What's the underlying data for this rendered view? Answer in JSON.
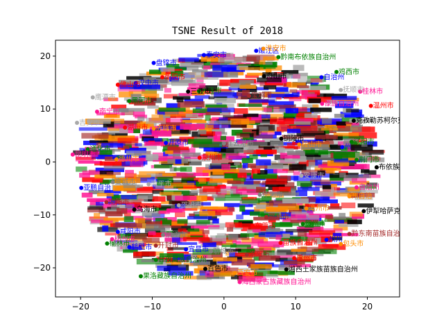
{
  "chart_data": {
    "type": "scatter",
    "title": "TSNE Result of 2018",
    "xlabel": "",
    "ylabel": "",
    "xlim": [
      -23.5,
      24.5
    ],
    "ylim": [
      -25.5,
      23
    ],
    "xticks": [
      -20,
      -10,
      0,
      10,
      20
    ],
    "yticks": [
      -20,
      -10,
      0,
      10,
      20
    ],
    "grid": false,
    "colors": [
      "#0000ff",
      "#ff8c00",
      "#008000",
      "#ff0000",
      "#a52a2a",
      "#ff1493",
      "#808080",
      "#000000",
      "#a9a9a9"
    ],
    "series": [
      {
        "color": "#0000ff",
        "points": [
          {
            "x": -9.8,
            "y": 18.7,
            "label": "盘锦市"
          },
          {
            "x": -2.8,
            "y": 20.2,
            "label": "泰安市"
          },
          {
            "x": -12.3,
            "y": 14.9,
            "label": "汉中市"
          },
          {
            "x": -19.9,
            "y": -4.9,
            "label": "亚鹏自治"
          },
          {
            "x": -14.8,
            "y": -13.2,
            "label": "咸阳市"
          },
          {
            "x": -13.2,
            "y": -16.1,
            "label": "鹤壁市"
          },
          {
            "x": -5.3,
            "y": -16.5,
            "label": "宜昌市"
          },
          {
            "x": 13.6,
            "y": 16.0,
            "label": "自治州"
          },
          {
            "x": 16.5,
            "y": 2.8,
            "label": "州"
          },
          {
            "x": 14.3,
            "y": -14.7,
            "label": "州州"
          },
          {
            "x": 4.5,
            "y": 21.0,
            "label": "嫩江区"
          },
          {
            "x": -8.1,
            "y": 3.6,
            "label": "开原市"
          }
        ]
      },
      {
        "color": "#ff8c00",
        "points": [
          {
            "x": 5.5,
            "y": 21.4,
            "label": "淮安市"
          },
          {
            "x": 10.5,
            "y": 3.3,
            "label": "鞍山市"
          },
          {
            "x": 16.3,
            "y": -15.5,
            "label": "包头市"
          },
          {
            "x": 17.5,
            "y": -6.5,
            "label": "州自治"
          },
          {
            "x": -15.0,
            "y": 0.5,
            "label": "德州市"
          },
          {
            "x": 1.5,
            "y": -21.0,
            "label": "西安市"
          },
          {
            "x": -9.8,
            "y": 6.3,
            "label": "赤峰市"
          },
          {
            "x": 11.5,
            "y": -8.8,
            "label": "漳州市"
          }
        ]
      },
      {
        "color": "#008000",
        "points": [
          {
            "x": 7.6,
            "y": 19.8,
            "label": "黔南布依族自治州"
          },
          {
            "x": -16.3,
            "y": -15.4,
            "label": "榆林市"
          },
          {
            "x": -11.6,
            "y": -21.6,
            "label": "果洛藏族自治州"
          },
          {
            "x": -19.0,
            "y": 2.4,
            "label": "通化市"
          },
          {
            "x": -9.5,
            "y": -18.5,
            "label": "甘孜藏族自治州"
          },
          {
            "x": 17.8,
            "y": 3.8,
            "label": "辽阳市"
          },
          {
            "x": 18.5,
            "y": 0.4,
            "label": "荆门市"
          },
          {
            "x": -13.2,
            "y": 11.5,
            "label": "黑河市"
          },
          {
            "x": 15.7,
            "y": 17.0,
            "label": "鸡西市"
          },
          {
            "x": 11.0,
            "y": -11.7,
            "label": "贺州市"
          },
          {
            "x": -3.5,
            "y": 13.4,
            "label": "大连市"
          }
        ]
      },
      {
        "color": "#ff0000",
        "points": [
          {
            "x": -8.6,
            "y": 16.0,
            "label": "衡阳市"
          },
          {
            "x": -14.8,
            "y": 14.6,
            "label": "佛山市"
          },
          {
            "x": 9.8,
            "y": -18.2,
            "label": "惠州市"
          },
          {
            "x": 4.0,
            "y": -12.1,
            "label": "东莞市"
          },
          {
            "x": -3.4,
            "y": 0.8,
            "label": "泉州市"
          },
          {
            "x": 7.9,
            "y": -15.3,
            "label": "苗族自治州"
          },
          {
            "x": 20.5,
            "y": 10.6,
            "label": "温州市"
          },
          {
            "x": -13.8,
            "y": 6.5,
            "label": "湖州市"
          }
        ]
      },
      {
        "color": "#a52a2a",
        "points": [
          {
            "x": 17.5,
            "y": -13.6,
            "label": "黔东南苗族自治州"
          },
          {
            "x": 3.5,
            "y": 12.5,
            "label": "宝鸡市"
          },
          {
            "x": -16.4,
            "y": -7.6,
            "label": "南阳市"
          },
          {
            "x": -9.5,
            "y": -15.8,
            "label": "开封市"
          },
          {
            "x": 3.2,
            "y": -17.5,
            "label": "洛阳市"
          },
          {
            "x": 5.9,
            "y": -10.4,
            "label": "鄂州市"
          }
        ]
      },
      {
        "color": "#ff1493",
        "points": [
          {
            "x": 13.7,
            "y": 11.0,
            "label": "傣族自治州"
          },
          {
            "x": 2.2,
            "y": -22.7,
            "label": "海西蒙古族藏族自治州"
          },
          {
            "x": -21.1,
            "y": 1.4,
            "label": "昆明市"
          },
          {
            "x": -17.7,
            "y": 9.5,
            "label": "南宁市"
          },
          {
            "x": -15.6,
            "y": -14.6,
            "label": "柳州市"
          },
          {
            "x": 18.5,
            "y": -4.8,
            "label": "自治州"
          },
          {
            "x": 19.0,
            "y": 13.3,
            "label": "桂林市"
          }
        ]
      },
      {
        "color": "#808080",
        "points": [
          {
            "x": -8.5,
            "y": -13.8,
            "label": "镇江市"
          },
          {
            "x": 5.0,
            "y": -6.2,
            "label": "怀化市"
          },
          {
            "x": -1.8,
            "y": -16.9,
            "label": "聊城市"
          },
          {
            "x": 0.0,
            "y": 3.5,
            "label": "连云港市"
          },
          {
            "x": -15.5,
            "y": -3.8,
            "label": "宣城市"
          }
        ]
      },
      {
        "color": "#000000",
        "points": [
          {
            "x": 18.1,
            "y": 7.8,
            "label": "克孜勒苏柯尔克孜自治州"
          },
          {
            "x": 21.3,
            "y": -1.0,
            "label": "布依族苗族自治"
          },
          {
            "x": 19.5,
            "y": -9.3,
            "label": "伊犁哈萨克自治州"
          },
          {
            "x": 8.7,
            "y": -20.3,
            "label": "湘西土家族苗族自治州"
          },
          {
            "x": -5.0,
            "y": 13.3,
            "label": "三亚市"
          },
          {
            "x": 5.6,
            "y": 16.2,
            "label": "舟山市"
          },
          {
            "x": -2.6,
            "y": -20.2,
            "label": "百色市"
          },
          {
            "x": -12.5,
            "y": -9.0,
            "label": "乌海市"
          },
          {
            "x": 8.0,
            "y": 4.4,
            "label": "铜陵市"
          }
        ]
      },
      {
        "color": "#a9a9a9",
        "points": [
          {
            "x": -18.3,
            "y": 12.2,
            "label": "鹰潭市"
          },
          {
            "x": 16.3,
            "y": 13.6,
            "label": "抚顺市"
          },
          {
            "x": -20.5,
            "y": 7.4,
            "label": "吉安市"
          },
          {
            "x": -10.5,
            "y": -4.2,
            "label": "南平市"
          },
          {
            "x": 10.8,
            "y": -2.6,
            "label": "安康市"
          },
          {
            "x": -6.3,
            "y": -8.2,
            "label": "邵阳市"
          }
        ]
      }
    ]
  }
}
